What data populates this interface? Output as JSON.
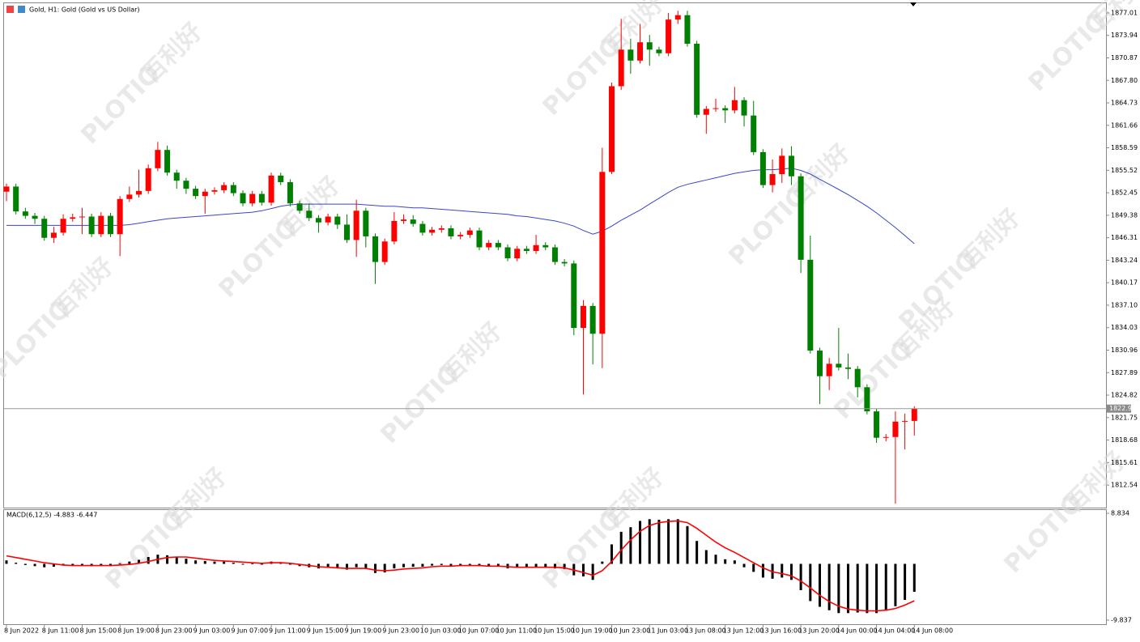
{
  "header": {
    "title": "Gold, H1:  Gold (Gold vs US Dollar)"
  },
  "watermark": {
    "brand": "PLOTIO",
    "text": "百利好"
  },
  "chart_data": [
    {
      "type": "candlestick",
      "categories": [
        "8 Jun 2022",
        null,
        null,
        null,
        "8 Jun 11:00",
        null,
        null,
        null,
        "8 Jun 15:00",
        null,
        null,
        null,
        "8 Jun 19:00",
        null,
        null,
        null,
        "8 Jun 23:00",
        null,
        null,
        null,
        "9 Jun 03:00",
        null,
        null,
        null,
        "9 Jun 07:00",
        null,
        null,
        null,
        "9 Jun 11:00",
        null,
        null,
        null,
        "9 Jun 15:00",
        null,
        null,
        null,
        "9 Jun 19:00",
        null,
        null,
        null,
        "9 Jun 23:00",
        null,
        null,
        null,
        "10 Jun 03:00",
        null,
        null,
        null,
        "10 Jun 07:00",
        null,
        null,
        null,
        "10 Jun 11:00",
        null,
        null,
        null,
        "10 Jun 15:00",
        null,
        null,
        null,
        "10 Jun 19:00",
        null,
        null,
        null,
        "10 Jun 23:00",
        null,
        null,
        null,
        "11 Jun 03:00",
        null,
        null,
        null,
        "13 Jun 08:00",
        null,
        null,
        null,
        "13 Jun 12:00",
        null,
        null,
        null,
        "13 Jun 16:00",
        null,
        null,
        null,
        "13 Jun 20:00",
        null,
        null,
        null,
        "14 Jun 00:00",
        null,
        null,
        null,
        "14 Jun 04:00",
        null,
        null,
        null,
        "14 Jun 08:00"
      ],
      "open": [
        1852.6,
        1853.3,
        1849.9,
        1849.3,
        1848.9,
        1846.3,
        1847.0,
        1848.9,
        1849.1,
        1849.2,
        1846.8,
        1849.3,
        1846.8,
        1851.6,
        1852.2,
        1852.7,
        1855.8,
        1858.3,
        1855.2,
        1854.1,
        1853.0,
        1852.0,
        1852.6,
        1852.8,
        1853.5,
        1852.4,
        1851.0,
        1852.3,
        1851.1,
        1854.8,
        1853.9,
        1851.0,
        1850.0,
        1849.0,
        1848.4,
        1849.2,
        1848.1,
        1846.0,
        1850.0,
        1846.5,
        1843.0,
        1845.8,
        1848.6,
        1848.8,
        1848.2,
        1847.0,
        1847.4,
        1847.6,
        1846.5,
        1846.7,
        1847.3,
        1845.0,
        1845.6,
        1845.0,
        1843.5,
        1844.8,
        1844.5,
        1845.3,
        1845.0,
        1843.0,
        1842.8,
        1834.0,
        1837.0,
        1833.2,
        1855.3,
        1867.0,
        1872.0,
        1870.5,
        1873.0,
        1872.0,
        1871.5,
        1876.1,
        1876.7,
        1872.8,
        1863.1,
        1863.9,
        1864.0,
        1863.7,
        1865.1,
        1863.0,
        1858.0,
        1853.5,
        1855.0,
        1857.5,
        1854.7,
        1843.3,
        1830.9,
        1827.4,
        1829.1,
        1828.6,
        1828.4,
        1825.9,
        1822.6,
        1819.0,
        1819.1,
        1821.2,
        1821.3
      ],
      "high": [
        1853.7,
        1853.7,
        1850.4,
        1849.7,
        1849.3,
        1847.8,
        1849.5,
        1849.6,
        1850.4,
        1849.6,
        1849.8,
        1849.7,
        1852.0,
        1853.3,
        1855.6,
        1856.3,
        1859.4,
        1858.9,
        1855.6,
        1854.5,
        1853.4,
        1853.0,
        1853.2,
        1853.9,
        1853.9,
        1852.8,
        1852.7,
        1852.7,
        1855.2,
        1855.2,
        1854.3,
        1851.4,
        1851.0,
        1849.4,
        1849.6,
        1849.6,
        1849.5,
        1851.5,
        1850.4,
        1846.9,
        1846.2,
        1849.8,
        1849.5,
        1849.4,
        1848.6,
        1847.8,
        1848.0,
        1848.0,
        1847.1,
        1847.7,
        1847.7,
        1846.0,
        1846.0,
        1845.4,
        1845.2,
        1845.2,
        1846.7,
        1845.7,
        1845.4,
        1843.4,
        1843.2,
        1837.8,
        1837.4,
        1858.6,
        1867.5,
        1876.2,
        1873.5,
        1875.5,
        1874.0,
        1872.4,
        1877.0,
        1877.3,
        1877.3,
        1873.2,
        1864.3,
        1865.3,
        1864.4,
        1866.9,
        1865.5,
        1865.0,
        1858.4,
        1857.0,
        1858.5,
        1858.8,
        1855.1,
        1846.6,
        1831.3,
        1829.9,
        1834.0,
        1830.5,
        1828.8,
        1826.3,
        1823.0,
        1819.5,
        1822.6,
        1822.3,
        1823.3
      ],
      "low": [
        1851.3,
        1849.5,
        1848.9,
        1848.2,
        1845.9,
        1845.6,
        1846.6,
        1848.5,
        1846.8,
        1846.4,
        1846.4,
        1846.4,
        1843.8,
        1851.2,
        1851.8,
        1852.3,
        1855.4,
        1854.8,
        1853.0,
        1852.3,
        1851.6,
        1849.6,
        1852.2,
        1852.4,
        1852.0,
        1850.6,
        1850.6,
        1850.7,
        1850.7,
        1853.5,
        1850.6,
        1849.6,
        1848.6,
        1847.0,
        1848.0,
        1847.5,
        1845.6,
        1843.7,
        1845.0,
        1840.0,
        1842.6,
        1845.4,
        1848.2,
        1847.8,
        1846.6,
        1846.6,
        1847.0,
        1846.1,
        1846.1,
        1846.3,
        1844.6,
        1844.6,
        1844.6,
        1843.1,
        1843.1,
        1844.1,
        1844.1,
        1844.6,
        1842.6,
        1842.4,
        1833.0,
        1824.9,
        1829.0,
        1828.5,
        1855.0,
        1866.5,
        1868.7,
        1870.1,
        1869.8,
        1871.1,
        1871.1,
        1875.5,
        1872.4,
        1862.7,
        1860.5,
        1863.5,
        1862.0,
        1863.3,
        1861.5,
        1857.6,
        1853.1,
        1852.5,
        1853.8,
        1853.5,
        1841.5,
        1830.5,
        1823.6,
        1825.5,
        1828.2,
        1827.0,
        1824.5,
        1822.2,
        1818.3,
        1818.5,
        1810.0,
        1817.4,
        1819.3
      ],
      "close": [
        1853.3,
        1849.9,
        1849.3,
        1848.9,
        1846.3,
        1847.0,
        1848.9,
        1849.1,
        1849.2,
        1846.8,
        1849.3,
        1846.8,
        1851.6,
        1852.2,
        1852.7,
        1855.8,
        1858.3,
        1855.2,
        1854.1,
        1853.0,
        1852.0,
        1852.6,
        1852.8,
        1853.5,
        1852.4,
        1851.0,
        1852.3,
        1851.1,
        1854.8,
        1853.9,
        1851.0,
        1850.0,
        1849.0,
        1848.4,
        1849.2,
        1848.1,
        1846.0,
        1850.0,
        1846.5,
        1843.0,
        1845.8,
        1848.6,
        1848.8,
        1848.2,
        1847.0,
        1847.4,
        1847.6,
        1846.5,
        1846.7,
        1847.3,
        1845.0,
        1845.6,
        1845.0,
        1843.5,
        1844.8,
        1844.5,
        1845.3,
        1845.0,
        1843.0,
        1842.8,
        1834.0,
        1837.0,
        1833.2,
        1855.3,
        1867.0,
        1872.0,
        1870.5,
        1873.0,
        1872.0,
        1871.5,
        1876.1,
        1876.7,
        1872.8,
        1863.1,
        1863.9,
        1864.0,
        1863.7,
        1865.1,
        1863.0,
        1858.0,
        1853.5,
        1855.0,
        1857.5,
        1854.7,
        1843.3,
        1830.9,
        1827.4,
        1829.1,
        1828.6,
        1828.4,
        1825.9,
        1822.6,
        1819.0,
        1819.1,
        1821.2,
        1821.3,
        1822.98
      ],
      "up_color": "#ff0000",
      "down_color": "#008000",
      "ma": {
        "color": "#3a46cc",
        "values": [
          1848.0,
          1848.0,
          1848.0,
          1848.0,
          1848.0,
          1848.0,
          1848.0,
          1848.0,
          1848.0,
          1848.0,
          1848.0,
          1848.0,
          1848.0,
          1848.1,
          1848.3,
          1848.5,
          1848.7,
          1848.9,
          1849.0,
          1849.1,
          1849.2,
          1849.3,
          1849.4,
          1849.5,
          1849.6,
          1849.7,
          1849.8,
          1850.0,
          1850.3,
          1850.6,
          1850.8,
          1850.9,
          1850.9,
          1850.9,
          1850.9,
          1850.9,
          1850.9,
          1850.9,
          1850.8,
          1850.7,
          1850.6,
          1850.6,
          1850.5,
          1850.4,
          1850.4,
          1850.3,
          1850.2,
          1850.1,
          1850.0,
          1849.9,
          1849.8,
          1849.7,
          1849.6,
          1849.5,
          1849.3,
          1849.2,
          1849.0,
          1848.8,
          1848.6,
          1848.3,
          1847.9,
          1847.3,
          1846.8,
          1847.2,
          1847.9,
          1848.7,
          1849.4,
          1850.1,
          1850.9,
          1851.7,
          1852.5,
          1853.2,
          1853.6,
          1853.9,
          1854.2,
          1854.5,
          1854.8,
          1855.1,
          1855.3,
          1855.5,
          1855.6,
          1855.6,
          1855.7,
          1855.8,
          1855.5,
          1855.0,
          1854.3,
          1853.6,
          1852.9,
          1852.2,
          1851.4,
          1850.6,
          1849.7,
          1848.7,
          1847.7,
          1846.6,
          1845.5
        ]
      },
      "last_price": 1822.98,
      "ylim": [
        1809.46,
        1878.33
      ],
      "yticks": [
        1877.01,
        1873.94,
        1870.87,
        {
          "value": 1867.8,
          "label": "1867.80"
        },
        1864.73,
        1861.66,
        1858.59,
        1855.52,
        1852.45,
        1849.38,
        1846.31,
        1843.24,
        1840.17,
        {
          "value": 1837.1,
          "label": "1837.10"
        },
        1834.03,
        1830.96,
        1827.89,
        1824.82,
        1821.75,
        1818.68,
        1815.61,
        1812.54
      ]
    },
    {
      "type": "macd",
      "title": "MACD(6,12,5) -4.883 -6.447",
      "bar_color": "#000000",
      "signal_color": "#ff0000",
      "values": [
        0.6,
        0.2,
        -0.2,
        -0.4,
        -0.6,
        -0.5,
        -0.3,
        -0.3,
        -0.3,
        -0.4,
        -0.3,
        -0.4,
        0.1,
        0.4,
        0.7,
        1.2,
        1.6,
        1.5,
        1.2,
        0.9,
        0.6,
        0.5,
        0.4,
        0.4,
        0.2,
        0.0,
        0.1,
        -0.1,
        0.4,
        0.3,
        -0.1,
        -0.4,
        -0.6,
        -0.8,
        -0.7,
        -0.8,
        -1.0,
        -0.6,
        -0.9,
        -1.6,
        -1.5,
        -0.8,
        -0.6,
        -0.5,
        -0.5,
        -0.3,
        -0.2,
        -0.3,
        -0.3,
        -0.2,
        -0.4,
        -0.4,
        -0.5,
        -0.8,
        -0.7,
        -0.7,
        -0.5,
        -0.5,
        -0.8,
        -0.9,
        -2.0,
        -2.2,
        -2.8,
        0.4,
        3.4,
        5.6,
        6.4,
        7.5,
        7.8,
        7.7,
        7.8,
        7.8,
        6.6,
        4.0,
        2.4,
        1.6,
        0.8,
        0.6,
        -0.6,
        -1.4,
        -2.4,
        -2.6,
        -2.4,
        -2.8,
        -4.6,
        -6.5,
        -7.5,
        -8.1,
        -8.6,
        -8.6,
        -8.5,
        -8.6,
        -8.6,
        -8.2,
        -7.4,
        -6.3,
        -4.883
      ],
      "signal": [
        1.4,
        1.1,
        0.8,
        0.5,
        0.2,
        0.0,
        -0.2,
        -0.3,
        -0.3,
        -0.3,
        -0.3,
        -0.3,
        -0.2,
        -0.1,
        0.1,
        0.4,
        0.8,
        1.1,
        1.2,
        1.2,
        1.0,
        0.8,
        0.6,
        0.5,
        0.4,
        0.3,
        0.2,
        0.1,
        0.2,
        0.2,
        0.1,
        -0.1,
        -0.3,
        -0.5,
        -0.6,
        -0.7,
        -0.8,
        -0.8,
        -0.8,
        -1.1,
        -1.2,
        -1.1,
        -0.9,
        -0.8,
        -0.7,
        -0.5,
        -0.4,
        -0.4,
        -0.3,
        -0.3,
        -0.3,
        -0.4,
        -0.4,
        -0.5,
        -0.6,
        -0.6,
        -0.6,
        -0.6,
        -0.6,
        -0.7,
        -1.1,
        -1.5,
        -2.0,
        -1.2,
        0.4,
        2.4,
        4.2,
        5.7,
        6.7,
        7.2,
        7.4,
        7.5,
        7.2,
        6.2,
        5.0,
        3.8,
        2.8,
        2.0,
        1.1,
        0.2,
        -0.7,
        -1.4,
        -1.7,
        -2.1,
        -3.0,
        -4.2,
        -5.5,
        -6.6,
        -7.4,
        -7.9,
        -8.1,
        -8.2,
        -8.2,
        -8.1,
        -7.8,
        -7.2,
        -6.447
      ],
      "ylim": [
        -10.54,
        9.4
      ],
      "yticks": [
        8.834,
        -9.837
      ]
    }
  ]
}
